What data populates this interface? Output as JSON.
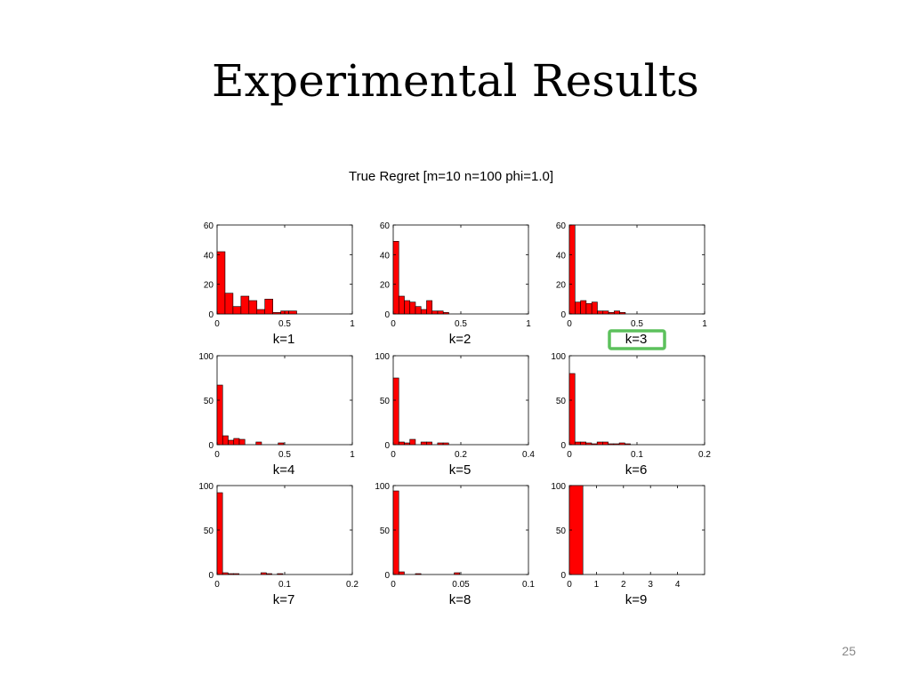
{
  "slide": {
    "title": "Experimental Results",
    "page_number": "25"
  },
  "highlight": {
    "label": "k=3",
    "color": "#5cc15c"
  },
  "bar_color": "#ff0000",
  "chart_data": {
    "type": "bar",
    "title": "True Regret [m=10 n=100 phi=1.0]",
    "grid": false,
    "subplots": [
      {
        "label": "k=1",
        "xlim": [
          0,
          1
        ],
        "ylim": [
          0,
          60
        ],
        "xticks": [
          "0",
          "0.5",
          "1"
        ],
        "yticks": [
          "0",
          "20",
          "40",
          "60"
        ],
        "bins": 15,
        "bin_width": 0.0589,
        "values": [
          42,
          14,
          5,
          12,
          9,
          3,
          10,
          1,
          2,
          2,
          0,
          0,
          0,
          0,
          0
        ]
      },
      {
        "label": "k=2",
        "xlim": [
          0,
          1
        ],
        "ylim": [
          0,
          60
        ],
        "xticks": [
          "0",
          "0.5",
          "1"
        ],
        "yticks": [
          "0",
          "20",
          "40",
          "60"
        ],
        "bins": 15,
        "bin_width": 0.0411,
        "values": [
          49,
          12,
          9,
          8,
          5,
          3,
          9,
          2,
          2,
          1,
          0,
          0,
          0,
          0,
          0
        ]
      },
      {
        "label": "k=3",
        "xlim": [
          0,
          1
        ],
        "ylim": [
          0,
          60
        ],
        "xticks": [
          "0",
          "0.5",
          "1"
        ],
        "yticks": [
          "0",
          "20",
          "40",
          "60"
        ],
        "bins": 15,
        "bin_width": 0.0414,
        "values": [
          60,
          8,
          9,
          7,
          8,
          2,
          2,
          1,
          2,
          1,
          0,
          0,
          0,
          0,
          0
        ]
      },
      {
        "label": "k=4",
        "xlim": [
          0,
          1
        ],
        "ylim": [
          0,
          100
        ],
        "xticks": [
          "0",
          "0.5",
          "1"
        ],
        "yticks": [
          "0",
          "50",
          "100"
        ],
        "bins": 15,
        "bin_width": 0.0411,
        "values": [
          67,
          10,
          5,
          7,
          6,
          0,
          0,
          3,
          0,
          0,
          0,
          2,
          0,
          0,
          0
        ]
      },
      {
        "label": "k=5",
        "xlim": [
          0,
          0.4
        ],
        "ylim": [
          0,
          100
        ],
        "xticks": [
          "0",
          "0.2",
          "0.4"
        ],
        "yticks": [
          "0",
          "50",
          "100"
        ],
        "bins": 15,
        "bin_width": 0.0164,
        "values": [
          75,
          3,
          2,
          6,
          0,
          3,
          3,
          0,
          2,
          2,
          0,
          0,
          0,
          0,
          0
        ]
      },
      {
        "label": "k=6",
        "xlim": [
          0,
          0.2
        ],
        "ylim": [
          0,
          100
        ],
        "xticks": [
          "0",
          "0.1",
          "0.2"
        ],
        "yticks": [
          "0",
          "50",
          "100"
        ],
        "bins": 15,
        "bin_width": 0.0082,
        "values": [
          80,
          3,
          3,
          2,
          1,
          3,
          3,
          1,
          1,
          2,
          1,
          0,
          0,
          0,
          0
        ]
      },
      {
        "label": "k=7",
        "xlim": [
          0,
          0.2
        ],
        "ylim": [
          0,
          100
        ],
        "xticks": [
          "0",
          "0.1",
          "0.2"
        ],
        "yticks": [
          "0",
          "50",
          "100"
        ],
        "bins": 15,
        "bin_width": 0.0081,
        "values": [
          92,
          2,
          1,
          1,
          0,
          0,
          0,
          0,
          2,
          1,
          0,
          1,
          0,
          0,
          0
        ]
      },
      {
        "label": "k=8",
        "xlim": [
          0,
          0.1
        ],
        "ylim": [
          0,
          100
        ],
        "xticks": [
          "0",
          "0.05",
          "0.1"
        ],
        "yticks": [
          "0",
          "50",
          "100"
        ],
        "bins": 15,
        "bin_width": 0.0041,
        "values": [
          94,
          3,
          0,
          0,
          1,
          0,
          0,
          0,
          0,
          0,
          0,
          2,
          0,
          0,
          0
        ]
      },
      {
        "label": "k=9",
        "xlim": [
          0,
          5
        ],
        "ylim": [
          0,
          100
        ],
        "xticks": [
          "0",
          "1",
          "2",
          "3",
          "4"
        ],
        "yticks": [
          "0",
          "50",
          "100"
        ],
        "bins": 1,
        "bin_width": 0.5,
        "values": [
          100
        ]
      }
    ]
  }
}
